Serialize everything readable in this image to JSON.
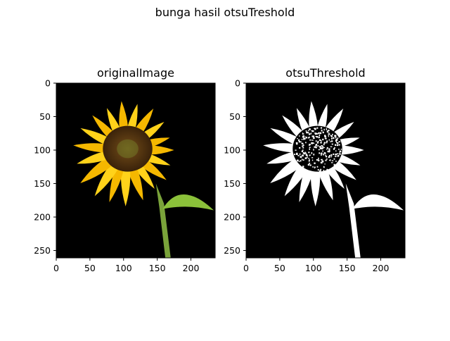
{
  "figure": {
    "suptitle": "bunga hasil otsuTreshold"
  },
  "chart_data": [
    {
      "type": "image",
      "title": "originalImage",
      "xlabel": "",
      "ylabel": "",
      "xlim": [
        0,
        236
      ],
      "ylim": [
        261,
        0
      ],
      "xticks": [
        0,
        50,
        100,
        150,
        200
      ],
      "yticks": [
        0,
        50,
        100,
        150,
        200,
        250
      ],
      "colors": {
        "background": "#000000",
        "petal": "#f5b800",
        "petal_light": "#ffd21a",
        "center": "#5a3a12",
        "stem": "#7aa33a",
        "leaf": "#8bc13a"
      }
    },
    {
      "type": "image",
      "title": "otsuThreshold",
      "xlabel": "",
      "ylabel": "",
      "xlim": [
        0,
        236
      ],
      "ylim": [
        261,
        0
      ],
      "xticks": [
        0,
        50,
        100,
        150,
        200
      ],
      "yticks": [
        0,
        50,
        100,
        150,
        200,
        250
      ],
      "colors": {
        "background": "#000000",
        "foreground": "#ffffff"
      }
    }
  ]
}
